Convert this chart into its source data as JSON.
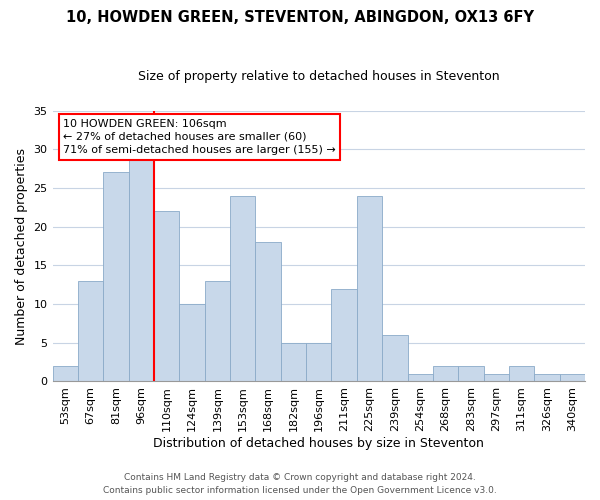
{
  "title": "10, HOWDEN GREEN, STEVENTON, ABINGDON, OX13 6FY",
  "subtitle": "Size of property relative to detached houses in Steventon",
  "xlabel": "Distribution of detached houses by size in Steventon",
  "ylabel": "Number of detached properties",
  "bar_color": "#c8d8ea",
  "bar_edge_color": "#8aaac8",
  "categories": [
    "53sqm",
    "67sqm",
    "81sqm",
    "96sqm",
    "110sqm",
    "124sqm",
    "139sqm",
    "153sqm",
    "168sqm",
    "182sqm",
    "196sqm",
    "211sqm",
    "225sqm",
    "239sqm",
    "254sqm",
    "268sqm",
    "283sqm",
    "297sqm",
    "311sqm",
    "326sqm",
    "340sqm"
  ],
  "values": [
    2,
    13,
    27,
    29,
    22,
    10,
    13,
    24,
    18,
    5,
    5,
    12,
    24,
    6,
    1,
    2,
    2,
    1,
    2,
    1,
    1
  ],
  "ylim": [
    0,
    35
  ],
  "yticks": [
    0,
    5,
    10,
    15,
    20,
    25,
    30,
    35
  ],
  "property_line_label": "10 HOWDEN GREEN: 106sqm",
  "annotation_line1": "← 27% of detached houses are smaller (60)",
  "annotation_line2": "71% of semi-detached houses are larger (155) →",
  "footnote1": "Contains HM Land Registry data © Crown copyright and database right 2024.",
  "footnote2": "Contains public sector information licensed under the Open Government Licence v3.0.",
  "background_color": "#ffffff",
  "grid_color": "#c8d4e4",
  "title_fontsize": 10.5,
  "subtitle_fontsize": 9,
  "axis_label_fontsize": 9,
  "tick_fontsize": 8,
  "footnote_fontsize": 6.5
}
